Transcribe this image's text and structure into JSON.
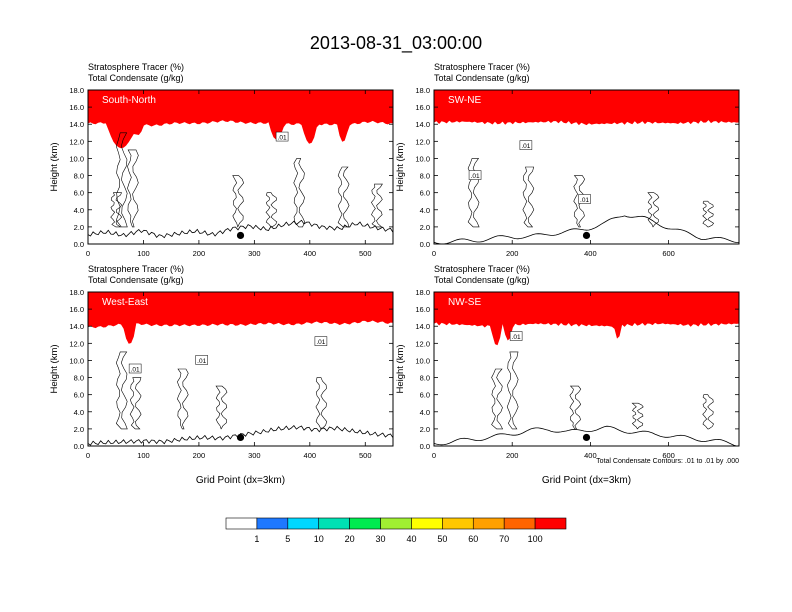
{
  "figure_title": "2013-08-31_03:00:00",
  "subtitle_line1": "Stratosphere Tracer   (%)",
  "subtitle_line2": "Total Condensate   (g/kg)",
  "ylabel": "Height (km)",
  "xlabel": "Grid Point (dx=3km)",
  "contour_note": "Total Condensate Contours: .01 to .01 by .000",
  "colors": {
    "levels": [
      "#ffffff",
      "#1e78ff",
      "#00d7ff",
      "#00e1b4",
      "#00eb50",
      "#a0f032",
      "#ffff00",
      "#ffc800",
      "#ffa000",
      "#ff6400",
      "#ff0000"
    ],
    "contour": "#000000",
    "panel_label": "#ffffff"
  },
  "colorbar": {
    "labels": [
      "1",
      "5",
      "10",
      "20",
      "30",
      "40",
      "50",
      "60",
      "70",
      "100"
    ]
  },
  "chart_data": [
    {
      "type": "contour",
      "panel_label": "South-North",
      "xlim": [
        0,
        550
      ],
      "ylim": [
        0,
        18
      ],
      "xticks": [
        "0",
        "100",
        "200",
        "300",
        "400",
        "500"
      ],
      "xtick_values": [
        0,
        100,
        200,
        300,
        400,
        500
      ],
      "yticks": [
        "0.0",
        "2.0",
        "4.0",
        "6.0",
        "8.0",
        "10.0",
        "12.0",
        "14.0",
        "16.0",
        "18.0"
      ],
      "tropopause_km": [
        14.4,
        14.6,
        14.3,
        14.2,
        14.4,
        14.5,
        14.6,
        14.5,
        14.3,
        14.4,
        14.2,
        14.3,
        14.5,
        14.4
      ],
      "dips": [
        {
          "x": 60,
          "min_km": 11.5,
          "w": 28
        },
        {
          "x": 90,
          "min_km": 13.0,
          "w": 10
        },
        {
          "x": 340,
          "min_km": 12.5,
          "w": 14
        },
        {
          "x": 400,
          "min_km": 12.0,
          "w": 14
        },
        {
          "x": 460,
          "min_km": 12.2,
          "w": 10
        }
      ],
      "terrain_km": [
        1.1,
        1.4,
        1.0,
        1.6,
        0.9,
        1.2,
        1.5,
        1.1,
        1.8,
        2.1,
        1.7,
        2.3,
        2.6,
        2.0,
        1.8,
        2.4,
        1.9,
        1.6
      ],
      "marker": {
        "x": 275,
        "y_km": 1.0
      },
      "contour_labels": [
        {
          "text": ".01",
          "x": 350,
          "y_km": 12.5
        }
      ]
    },
    {
      "type": "contour",
      "panel_label": "SW-NE",
      "xlim": [
        0,
        780
      ],
      "ylim": [
        0,
        18
      ],
      "xticks": [
        "0",
        "200",
        "400",
        "600"
      ],
      "xtick_values": [
        0,
        200,
        400,
        600
      ],
      "yticks": [
        "0.0",
        "2.0",
        "4.0",
        "6.0",
        "8.0",
        "10.0",
        "12.0",
        "14.0",
        "16.0",
        "18.0"
      ],
      "tropopause_km": [
        14.5,
        14.6,
        14.4,
        14.5,
        14.6,
        14.3,
        14.4,
        14.5,
        14.4,
        14.6,
        14.5
      ],
      "dips": [],
      "terrain_km": [
        0.2,
        0.3,
        0.4,
        0.6,
        0.9,
        0.8,
        1.2,
        1.4,
        1.8,
        2.4,
        3.5,
        3.0,
        2.2,
        1.4,
        0.8,
        0.5,
        0.4
      ],
      "marker": {
        "x": 390,
        "y_km": 1.0
      },
      "contour_labels": [
        {
          "text": ".01",
          "x": 105,
          "y_km": 8.0
        },
        {
          "text": ".01",
          "x": 235,
          "y_km": 11.5
        },
        {
          "text": ".01",
          "x": 385,
          "y_km": 5.2
        }
      ]
    },
    {
      "type": "contour",
      "panel_label": "West-East",
      "xlim": [
        0,
        550
      ],
      "ylim": [
        0,
        18
      ],
      "xticks": [
        "0",
        "100",
        "200",
        "300",
        "400",
        "500"
      ],
      "xtick_values": [
        0,
        100,
        200,
        300,
        400,
        500
      ],
      "yticks": [
        "0.0",
        "2.0",
        "4.0",
        "6.0",
        "8.0",
        "10.0",
        "12.0",
        "14.0",
        "16.0",
        "18.0"
      ],
      "tropopause_km": [
        14.2,
        14.4,
        14.6,
        14.3,
        14.5,
        14.4,
        14.6,
        14.5,
        14.7,
        14.6,
        14.8,
        14.7
      ],
      "dips": [
        {
          "x": 75,
          "min_km": 12.2,
          "w": 12
        }
      ],
      "terrain_km": [
        0.3,
        0.4,
        0.5,
        0.6,
        0.5,
        0.8,
        1.0,
        0.9,
        1.3,
        1.6,
        2.0,
        2.2,
        1.9,
        2.1,
        1.7,
        1.4,
        1.2
      ],
      "marker": {
        "x": 275,
        "y_km": 1.0
      },
      "contour_labels": [
        {
          "text": ".01",
          "x": 85,
          "y_km": 9.0
        },
        {
          "text": ".01",
          "x": 205,
          "y_km": 10.0
        },
        {
          "text": ".01",
          "x": 420,
          "y_km": 12.2
        }
      ]
    },
    {
      "type": "contour",
      "panel_label": "NW-SE",
      "xlim": [
        0,
        780
      ],
      "ylim": [
        0,
        18
      ],
      "xticks": [
        "0",
        "200",
        "400",
        "600"
      ],
      "xtick_values": [
        0,
        200,
        400,
        600
      ],
      "yticks": [
        "0.0",
        "2.0",
        "4.0",
        "6.0",
        "8.0",
        "10.0",
        "12.0",
        "14.0",
        "16.0",
        "18.0"
      ],
      "tropopause_km": [
        14.6,
        14.5,
        14.3,
        14.4,
        14.6,
        14.5,
        14.4,
        14.3,
        14.5,
        14.6,
        14.4,
        14.5,
        14.6
      ],
      "dips": [
        {
          "x": 160,
          "min_km": 12.0,
          "w": 14
        },
        {
          "x": 190,
          "min_km": 12.6,
          "w": 12
        },
        {
          "x": 470,
          "min_km": 12.8,
          "w": 10
        }
      ],
      "terrain_km": [
        0.3,
        0.5,
        0.8,
        1.0,
        1.4,
        1.8,
        2.0,
        1.6,
        1.9,
        2.1,
        1.8,
        1.5,
        1.3,
        1.0,
        0.8,
        0.5,
        0.2
      ],
      "marker": {
        "x": 390,
        "y_km": 1.0
      },
      "contour_labels": [
        {
          "text": ".01",
          "x": 210,
          "y_km": 12.8
        }
      ]
    }
  ]
}
